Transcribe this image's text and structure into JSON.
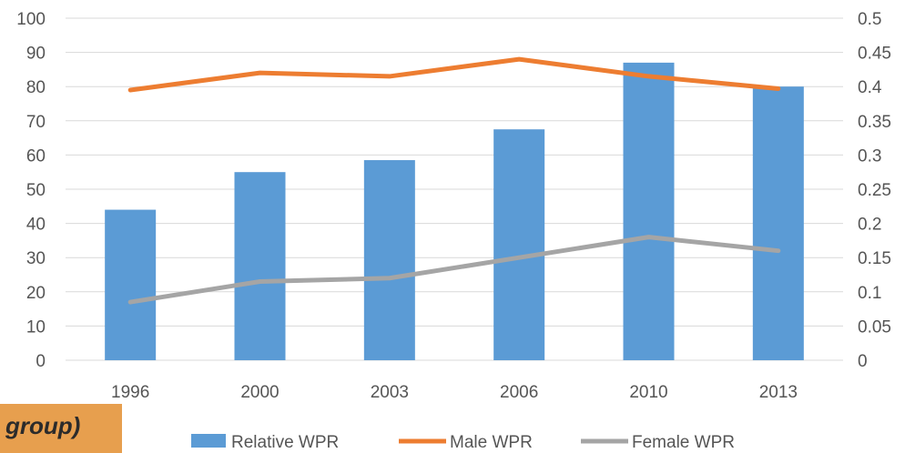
{
  "badge": {
    "text": "group)"
  },
  "chart_data": {
    "type": "bar",
    "categories": [
      "1996",
      "2000",
      "2003",
      "2006",
      "2010",
      "2013"
    ],
    "series": [
      {
        "name": "Relative WPR",
        "type": "bar",
        "axis": "left",
        "values": [
          44,
          55,
          58.5,
          67.5,
          87,
          80
        ],
        "color": "#5b9bd5"
      },
      {
        "name": "Male WPR",
        "type": "line",
        "axis": "right",
        "values": [
          0.395,
          0.42,
          0.415,
          0.44,
          0.415,
          0.397
        ],
        "color": "#ed7d31"
      },
      {
        "name": "Female WPR",
        "type": "line",
        "axis": "right",
        "values": [
          0.085,
          0.115,
          0.12,
          0.15,
          0.18,
          0.16
        ],
        "color": "#a5a5a5"
      }
    ],
    "ylim_left": [
      0,
      100
    ],
    "left_ticks": [
      "0",
      "10",
      "20",
      "30",
      "40",
      "50",
      "60",
      "70",
      "80",
      "90",
      "100"
    ],
    "ylim_right": [
      0,
      0.5
    ],
    "right_ticks": [
      "0",
      "0.05",
      "0.1",
      "0.15",
      "0.2",
      "0.25",
      "0.3",
      "0.35",
      "0.4",
      "0.45",
      "0.5"
    ],
    "grid": true,
    "legend": "bottom"
  }
}
